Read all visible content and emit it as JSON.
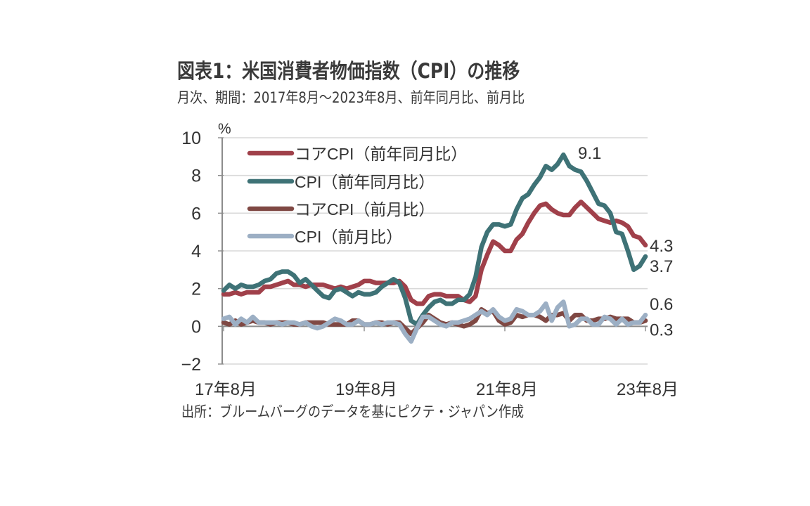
{
  "title": "図表1：米国消費者物価指数（CPI）の推移",
  "subtitle": "月次、期間：2017年8月～2023年8月、前年同月比、前月比",
  "source": "出所：ブルームバーグのデータを基にピクテ・ジャパン作成",
  "chart_data": {
    "type": "line",
    "title": "図表1：米国消費者物価指数（CPI）の推移",
    "subtitle": "月次、期間：2017年8月～2023年8月、前年同月比、前月比",
    "xlabel": "",
    "ylabel": "%",
    "ylim": [
      -2,
      10
    ],
    "yticks": [
      -2,
      0,
      2,
      4,
      6,
      8,
      10
    ],
    "ytick_labels": [
      "−2",
      "0",
      "2",
      "4",
      "6",
      "8",
      "10"
    ],
    "grid": true,
    "legend_position": "upper-left-inside",
    "x_start": "2017-08",
    "x_end": "2023-08",
    "x_tick_labels": [
      {
        "label": "17年8月",
        "index": 0
      },
      {
        "label": "19年8月",
        "index": 24
      },
      {
        "label": "21年8月",
        "index": 48
      },
      {
        "label": "23年8月",
        "index": 72
      }
    ],
    "series": [
      {
        "name": "コアCPI（前年同月比）",
        "color": "#a0404a",
        "values": [
          1.7,
          1.7,
          1.8,
          1.7,
          1.8,
          1.8,
          1.8,
          2.1,
          2.1,
          2.2,
          2.3,
          2.4,
          2.2,
          2.2,
          2.1,
          2.2,
          2.2,
          2.2,
          2.1,
          2.0,
          2.1,
          2.0,
          2.1,
          2.2,
          2.4,
          2.4,
          2.3,
          2.3,
          2.3,
          2.3,
          2.4,
          2.1,
          1.4,
          1.2,
          1.2,
          1.6,
          1.7,
          1.7,
          1.6,
          1.6,
          1.6,
          1.4,
          1.3,
          1.6,
          3.0,
          3.8,
          4.5,
          4.3,
          4.0,
          4.0,
          4.6,
          4.9,
          5.5,
          6.0,
          6.4,
          6.5,
          6.2,
          6.0,
          5.9,
          5.9,
          6.3,
          6.6,
          6.3,
          6.0,
          5.7,
          5.6,
          5.5,
          5.6,
          5.5,
          5.3,
          4.8,
          4.7,
          4.3
        ]
      },
      {
        "name": "CPI（前年同月比）",
        "color": "#3e7276",
        "values": [
          1.9,
          2.2,
          2.0,
          2.2,
          2.1,
          2.1,
          2.2,
          2.4,
          2.5,
          2.8,
          2.9,
          2.9,
          2.7,
          2.3,
          2.5,
          2.2,
          1.9,
          1.6,
          1.5,
          1.9,
          2.0,
          1.8,
          1.6,
          1.8,
          1.7,
          1.7,
          1.8,
          2.1,
          2.3,
          2.5,
          2.3,
          1.5,
          0.3,
          0.1,
          0.6,
          1.0,
          1.3,
          1.4,
          1.2,
          1.2,
          1.4,
          1.4,
          1.7,
          2.6,
          4.2,
          5.0,
          5.4,
          5.4,
          5.3,
          5.4,
          6.2,
          6.8,
          7.0,
          7.5,
          7.9,
          8.5,
          8.3,
          8.6,
          9.1,
          8.5,
          8.3,
          8.2,
          7.7,
          7.1,
          6.5,
          6.4,
          6.0,
          5.0,
          4.9,
          4.0,
          3.0,
          3.2,
          3.7
        ]
      },
      {
        "name": "コアCPI（前月比）",
        "color": "#7f4843",
        "values": [
          0.2,
          0.1,
          0.3,
          0.1,
          0.2,
          0.3,
          0.2,
          0.2,
          0.1,
          0.2,
          0.2,
          0.2,
          0.1,
          0.1,
          0.2,
          0.2,
          0.2,
          0.2,
          0.1,
          0.1,
          0.1,
          0.1,
          0.3,
          0.3,
          0.1,
          0.1,
          0.2,
          0.2,
          0.1,
          0.2,
          0.2,
          -0.1,
          -0.4,
          -0.1,
          0.2,
          0.6,
          0.4,
          0.2,
          0.1,
          0.2,
          0.1,
          0.0,
          0.1,
          0.3,
          0.9,
          0.7,
          0.8,
          0.3,
          0.1,
          0.2,
          0.6,
          0.5,
          0.6,
          0.6,
          0.5,
          0.3,
          0.6,
          0.6,
          0.7,
          0.3,
          0.6,
          0.6,
          0.3,
          0.3,
          0.4,
          0.4,
          0.5,
          0.4,
          0.4,
          0.4,
          0.2,
          0.2,
          0.3
        ]
      },
      {
        "name": "CPI（前月比）",
        "color": "#9cafc4",
        "values": [
          0.4,
          0.5,
          0.1,
          0.4,
          0.2,
          0.5,
          0.2,
          0.2,
          0.2,
          0.2,
          0.1,
          0.2,
          0.2,
          0.1,
          0.2,
          0.0,
          -0.1,
          0.0,
          0.2,
          0.4,
          0.3,
          0.1,
          0.1,
          0.3,
          0.1,
          0.1,
          0.2,
          0.1,
          0.2,
          0.2,
          0.1,
          -0.4,
          -0.8,
          -0.1,
          0.5,
          0.5,
          0.3,
          0.1,
          0.0,
          0.2,
          0.2,
          0.3,
          0.4,
          0.6,
          0.8,
          0.6,
          0.9,
          0.5,
          0.3,
          0.4,
          0.9,
          0.8,
          0.6,
          0.6,
          0.8,
          1.2,
          0.3,
          1.0,
          1.3,
          0.0,
          0.1,
          0.4,
          0.4,
          0.1,
          0.1,
          0.5,
          0.4,
          0.1,
          0.4,
          0.1,
          0.2,
          0.2,
          0.6
        ]
      }
    ],
    "annotations": [
      {
        "text": "9.1",
        "series": "CPI（前年同月比）",
        "index": 58
      },
      {
        "text": "4.3",
        "series": "コアCPI（前年同月比）",
        "index": 72
      },
      {
        "text": "3.7",
        "series": "CPI（前年同月比）",
        "index": 72
      },
      {
        "text": "0.6",
        "series": "CPI（前月比）",
        "index": 72
      },
      {
        "text": "0.3",
        "series": "コアCPI（前月比）",
        "index": 72
      }
    ]
  }
}
